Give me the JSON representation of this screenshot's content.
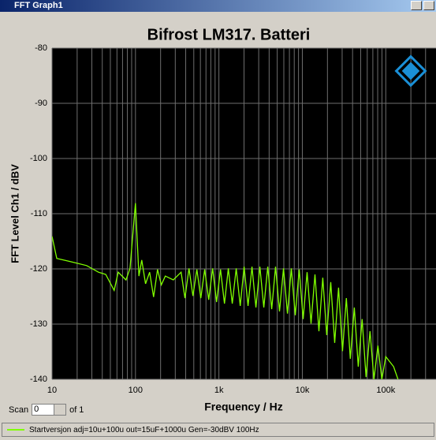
{
  "window": {
    "title": "FFT Graph1"
  },
  "scan": {
    "label": "Scan",
    "value": 0,
    "of": "of 1"
  },
  "chart_data": {
    "type": "line",
    "title": "Bifrost LM317. Batteri",
    "x_label": "Frequency / Hz",
    "y_label": "FFT Level Ch1 / dBV",
    "x_scale": "log",
    "grid": true,
    "xlim": [
      10,
      400000
    ],
    "ylim": [
      -140,
      -80
    ],
    "xticks": [
      10,
      100,
      {
        "value": 1000,
        "label": "1k"
      },
      {
        "value": 10000,
        "label": "10k"
      },
      {
        "value": 100000,
        "label": "100k"
      }
    ],
    "yticks": [
      -80,
      -90,
      -100,
      -110,
      -120,
      -130,
      -140
    ],
    "series": [
      {
        "name": "Startversjon adj=10u+100u out=15uF+1000u  Gen=-30dBV 100Hz",
        "color": "#80ff00",
        "x": [
          10,
          11.4,
          16.8,
          26,
          36,
          44,
          55.6,
          62,
          77,
          86,
          100,
          110,
          119,
          132,
          148,
          165,
          184,
          204,
          228,
          284,
          352,
          392,
          438,
          488,
          544,
          607,
          676,
          754,
          841,
          938,
          1045,
          1165,
          1298,
          1447,
          1614,
          1800,
          2005,
          2236,
          2490,
          2776,
          3097,
          3453,
          3846,
          4288,
          4777,
          5326,
          5943,
          6626,
          7379,
          8228,
          9165,
          10220,
          11400,
          12710,
          14160,
          15790,
          17580,
          19600,
          21880,
          24400,
          27160,
          30280,
          33730,
          37610,
          41980,
          46810,
          52120,
          58110,
          64710,
          72150,
          80540,
          89800,
          100000,
          124200,
          140000
        ],
        "values": [
          -114.1,
          -118.1,
          -118.7,
          -119.4,
          -120.6,
          -121,
          -123.9,
          -120.6,
          -122,
          -119.9,
          -108.1,
          -121.3,
          -118.4,
          -122.7,
          -120.6,
          -125.1,
          -120.1,
          -122.9,
          -121.3,
          -122,
          -120.6,
          -125.3,
          -119.9,
          -124.9,
          -120.1,
          -125.3,
          -120.1,
          -125.6,
          -119.9,
          -126,
          -120.1,
          -126.3,
          -119.9,
          -126.3,
          -119.9,
          -126.7,
          -119.6,
          -126.7,
          -119.6,
          -127,
          -119.6,
          -127,
          -119.6,
          -127.3,
          -119.6,
          -127.7,
          -119.9,
          -128.1,
          -119.9,
          -128.4,
          -120.1,
          -129.1,
          -120.6,
          -129.9,
          -121,
          -131.3,
          -121.6,
          -132,
          -122.4,
          -133.4,
          -123.4,
          -134.9,
          -125.3,
          -136.3,
          -127,
          -137.7,
          -129.1,
          -139.6,
          -131.3,
          -140,
          -133.9,
          -140,
          -135.9,
          -137.7,
          -140
        ]
      }
    ]
  }
}
